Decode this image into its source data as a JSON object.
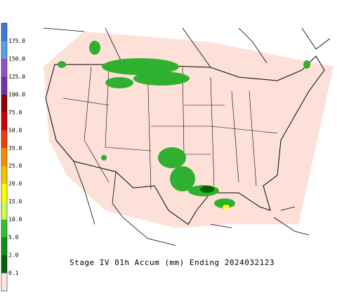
{
  "legend": {
    "labels": [
      "175.0",
      "150.0",
      "125.0",
      "100.0",
      "75.0",
      "50.0",
      "35.0",
      "25.0",
      "20.0",
      "15.0",
      "10.0",
      "5.0",
      "2.0",
      "0.1"
    ],
    "colors": [
      "#3c78d8",
      "#58a0e8",
      "#9050c8",
      "#7030b0",
      "#8c0000",
      "#c80000",
      "#f03c00",
      "#ff8c00",
      "#ffc000",
      "#ffff00",
      "#c8ff50",
      "#30c030",
      "#109010",
      "#006400",
      "#fde8e0"
    ]
  },
  "caption": "Stage IV 01h Accum (mm) Ending 2024032123"
}
